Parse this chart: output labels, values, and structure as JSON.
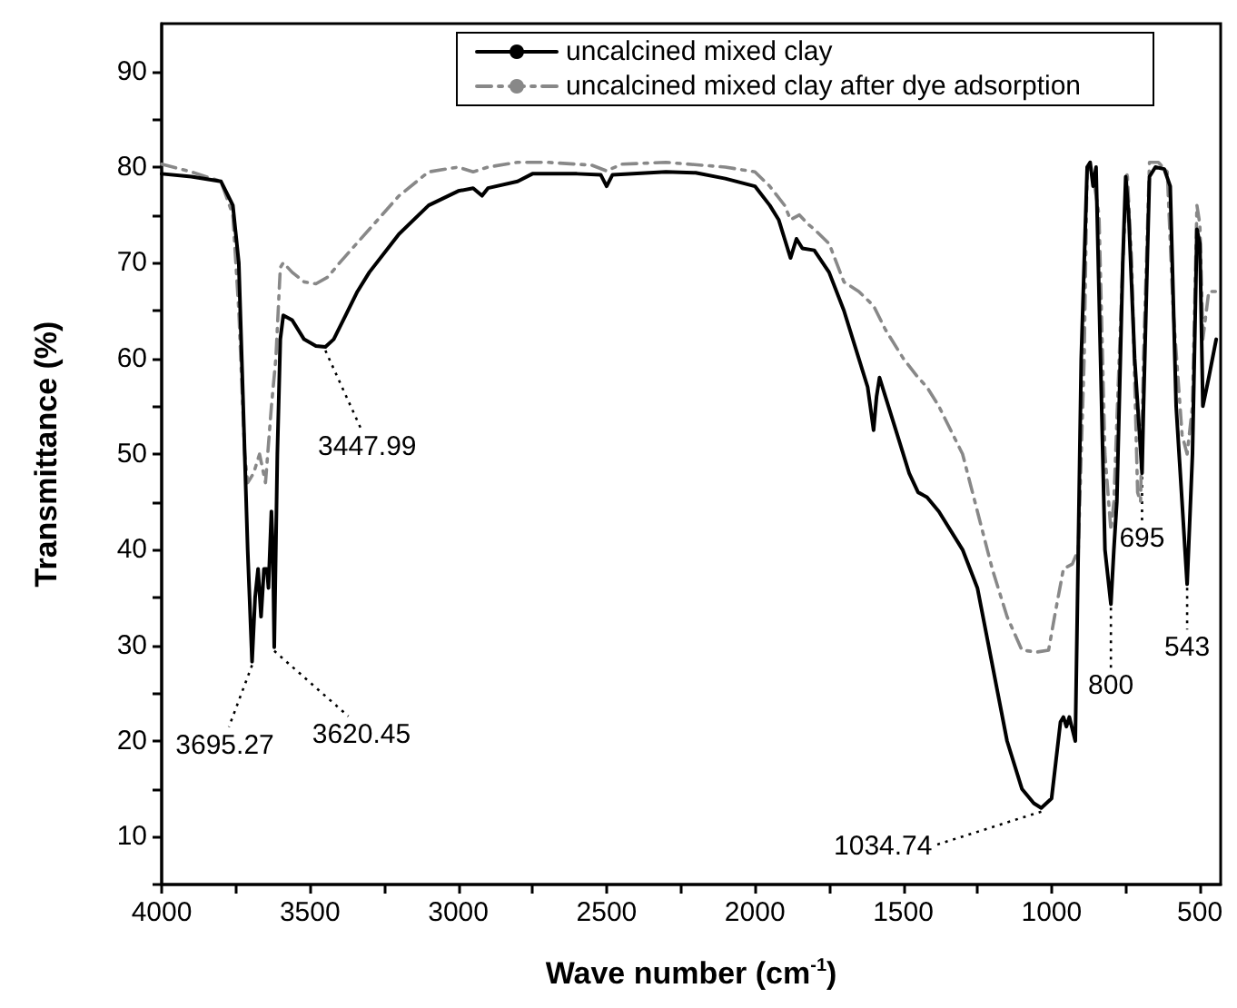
{
  "chart_data": {
    "type": "line",
    "xlabel": "Wave number (cm$^{-1}$)",
    "ylabel": "Transmittance (%)",
    "xlim": [
      4000,
      430
    ],
    "ylim": [
      5,
      95
    ],
    "xticks": [
      4000,
      {
        "value": 3750,
        "label": null
      },
      3500,
      {
        "value": 3250,
        "label": null
      },
      3000,
      {
        "value": 2750,
        "label": null
      },
      2500,
      {
        "value": 2250,
        "label": null
      },
      2000,
      {
        "value": 1750,
        "label": null
      },
      1500,
      {
        "value": 1250,
        "label": null
      },
      1000,
      {
        "value": 750,
        "label": null
      },
      500
    ],
    "yticks": [
      {
        "value": 5,
        "label": null
      },
      10,
      {
        "value": 15,
        "label": null
      },
      20,
      {
        "value": 25,
        "label": null
      },
      30,
      {
        "value": 35,
        "label": null
      },
      40,
      {
        "value": 45,
        "label": null
      },
      50,
      {
        "value": 55,
        "label": null
      },
      60,
      {
        "value": 65,
        "label": null
      },
      70,
      {
        "value": 75,
        "label": null
      },
      80,
      {
        "value": 85,
        "label": null
      },
      90
    ],
    "grid": false,
    "legend": "top right",
    "marker": "none",
    "series": [
      {
        "name": "uncalcined mixed clay",
        "color": "#000000",
        "line_style": "solid",
        "x": [
          4000,
          3900,
          3800,
          3760,
          3740,
          3720,
          3710,
          3695.27,
          3685,
          3675,
          3665,
          3655,
          3645,
          3640,
          3630,
          3625,
          3620.45,
          3610,
          3600,
          3590,
          3560,
          3520,
          3480,
          3447.99,
          3420,
          3380,
          3340,
          3300,
          3200,
          3100,
          3000,
          2950,
          2920,
          2900,
          2800,
          2750,
          2600,
          2520,
          2500,
          2480,
          2300,
          2200,
          2100,
          2000,
          1950,
          1920,
          1900,
          1880,
          1860,
          1840,
          1800,
          1750,
          1700,
          1650,
          1620,
          1600,
          1590,
          1580,
          1560,
          1520,
          1480,
          1450,
          1420,
          1380,
          1300,
          1250,
          1200,
          1150,
          1100,
          1060,
          1034.74,
          1000,
          970,
          960,
          950,
          940,
          920,
          900,
          880,
          870,
          860,
          850,
          820,
          800,
          790,
          780,
          760,
          750,
          740,
          720,
          695,
          690,
          670,
          650,
          620,
          600,
          580,
          543,
          525,
          510,
          500,
          490,
          470,
          445
        ],
        "values": [
          79.3,
          79,
          78.5,
          76,
          70,
          50,
          40,
          28.3,
          35,
          38,
          33,
          38,
          38,
          36,
          44,
          40,
          29.8,
          50,
          62,
          64.5,
          64,
          62,
          61.3,
          61.2,
          62,
          64.5,
          67,
          69,
          73,
          76,
          77.5,
          77.8,
          77,
          77.8,
          78.5,
          79.3,
          79.3,
          79.2,
          78,
          79.2,
          79.5,
          79.4,
          78.8,
          78,
          76,
          74.5,
          72.5,
          70.5,
          72.5,
          71.5,
          71.3,
          69,
          65,
          60,
          57,
          52.5,
          56,
          58,
          56,
          52,
          48,
          46,
          45.5,
          44,
          40,
          36,
          28,
          20,
          15,
          13.5,
          13,
          14,
          22,
          22.5,
          21.5,
          22.5,
          20,
          60,
          80,
          80.5,
          78,
          80,
          40,
          34.3,
          40,
          45,
          70,
          79,
          75,
          60,
          48,
          55,
          79,
          80,
          79.8,
          78,
          55,
          36.4,
          50,
          73.5,
          72,
          55,
          58,
          62
        ]
      },
      {
        "name": "uncalcined mixed clay after dye adsorption",
        "color": "#888888",
        "line_style": "dashed",
        "x": [
          4000,
          3900,
          3800,
          3760,
          3740,
          3720,
          3710,
          3690,
          3670,
          3650,
          3630,
          3615,
          3600,
          3590,
          3560,
          3520,
          3480,
          3440,
          3400,
          3300,
          3200,
          3100,
          3000,
          2950,
          2900,
          2800,
          2700,
          2550,
          2500,
          2450,
          2300,
          2100,
          2000,
          1950,
          1900,
          1880,
          1850,
          1820,
          1800,
          1750,
          1700,
          1650,
          1600,
          1560,
          1500,
          1450,
          1420,
          1380,
          1300,
          1250,
          1200,
          1150,
          1100,
          1050,
          1010,
          990,
          960,
          930,
          910,
          890,
          880,
          860,
          840,
          820,
          800,
          790,
          760,
          745,
          730,
          710,
          700,
          690,
          670,
          640,
          610,
          590,
          560,
          543,
          525,
          510,
          500,
          490,
          470,
          445
        ],
        "values": [
          80.3,
          79.5,
          78.5,
          75,
          65,
          50,
          47,
          48,
          50,
          47,
          55,
          60,
          69.5,
          70,
          69,
          68,
          67.8,
          68.5,
          70,
          73.5,
          77,
          79.5,
          80,
          79.5,
          80,
          80.5,
          80.5,
          80.2,
          79.6,
          80.3,
          80.5,
          80,
          79.5,
          78,
          76,
          74.5,
          75,
          74,
          73.5,
          72,
          68,
          67,
          65.5,
          63,
          60,
          58,
          57,
          55,
          50,
          44,
          38,
          33,
          29.5,
          29.3,
          29.5,
          33,
          38,
          38.5,
          40,
          60,
          80,
          79,
          75,
          50,
          42,
          45,
          70,
          79.5,
          70,
          46,
          45,
          60,
          80.5,
          80.5,
          79.5,
          65,
          52,
          50,
          55,
          76,
          74,
          62,
          67,
          67
        ]
      }
    ],
    "annotations": [
      {
        "text": "3695.27",
        "x": 3695.27,
        "y": 28.3
      },
      {
        "text": "3620.45",
        "x": 3620.45,
        "y": 29.8
      },
      {
        "text": "3447.99",
        "x": 3447.99,
        "y": 61.2
      },
      {
        "text": "1034.74",
        "x": 1034.74,
        "y": 13
      },
      {
        "text": "800",
        "x": 800,
        "y": 34.3
      },
      {
        "text": "695",
        "x": 695,
        "y": 48
      },
      {
        "text": "543",
        "x": 543,
        "y": 36.4
      }
    ]
  }
}
